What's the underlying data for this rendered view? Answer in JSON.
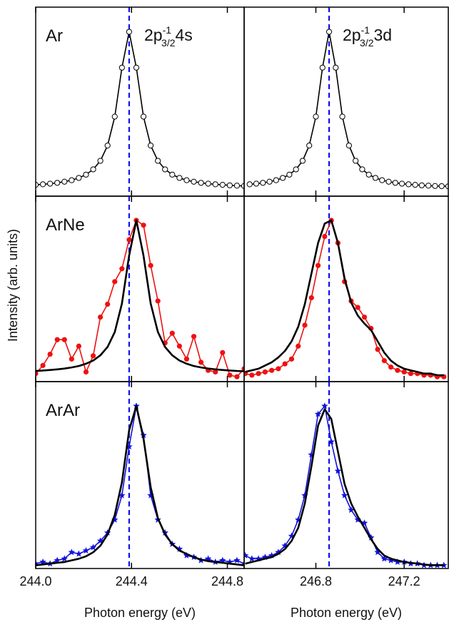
{
  "chart_data": [
    {
      "type": "line",
      "label": "Ar",
      "annotation": {
        "base": "2p",
        "sup": "-1",
        "sub": "3/2",
        "tail": "4s"
      },
      "xlim": [
        244.0,
        244.87
      ],
      "ylim": [
        0,
        1.15
      ],
      "vline": 244.39,
      "vline_color": "#0000ee",
      "series": [
        {
          "color": "#000000",
          "marker": "circle-open",
          "line": true,
          "x": [
            244.0,
            244.03,
            244.06,
            244.09,
            244.12,
            244.15,
            244.18,
            244.21,
            244.24,
            244.27,
            244.3,
            244.33,
            244.36,
            244.39,
            244.42,
            244.45,
            244.48,
            244.51,
            244.54,
            244.57,
            244.6,
            244.63,
            244.66,
            244.69,
            244.72,
            244.75,
            244.78,
            244.81,
            244.84,
            244.87
          ],
          "values": [
            0.069,
            0.072,
            0.076,
            0.081,
            0.088,
            0.097,
            0.111,
            0.131,
            0.163,
            0.215,
            0.308,
            0.484,
            0.782,
            1.0,
            0.782,
            0.484,
            0.308,
            0.215,
            0.163,
            0.131,
            0.111,
            0.097,
            0.088,
            0.081,
            0.076,
            0.072,
            0.069,
            0.066,
            0.064,
            0.062
          ]
        }
      ]
    },
    {
      "type": "line",
      "annotation": {
        "base": "2p",
        "sup": "-1",
        "sub": "3/2",
        "tail": "3d"
      },
      "xlim": [
        246.475,
        247.4
      ],
      "ylim": [
        0,
        1.15
      ],
      "vline": 246.86,
      "vline_color": "#0000ee",
      "series": [
        {
          "color": "#000000",
          "marker": "circle-open",
          "line": true,
          "x": [
            246.5,
            246.53,
            246.56,
            246.59,
            246.62,
            246.65,
            246.68,
            246.71,
            246.74,
            246.77,
            246.8,
            246.83,
            246.86,
            246.89,
            246.92,
            246.95,
            246.98,
            247.01,
            247.04,
            247.07,
            247.1,
            247.13,
            247.16,
            247.19,
            247.22,
            247.25,
            247.28,
            247.31,
            247.34,
            247.37,
            247.4
          ],
          "values": [
            0.072,
            0.076,
            0.081,
            0.088,
            0.097,
            0.111,
            0.131,
            0.163,
            0.215,
            0.308,
            0.484,
            0.782,
            1.0,
            0.782,
            0.484,
            0.308,
            0.215,
            0.163,
            0.131,
            0.111,
            0.097,
            0.088,
            0.081,
            0.076,
            0.072,
            0.069,
            0.066,
            0.064,
            0.062,
            0.061,
            0.06
          ]
        }
      ]
    },
    {
      "type": "line",
      "label": "ArNe",
      "ylabel": "Intensity (arb. units)",
      "xlim": [
        244.0,
        244.87
      ],
      "ylim": [
        0,
        1.15
      ],
      "vline": 244.39,
      "vline_color": "#0000ee",
      "series": [
        {
          "color": "#ee1111",
          "marker": "circle",
          "line": true,
          "x": [
            244.0,
            244.03,
            244.06,
            244.09,
            244.12,
            244.15,
            244.18,
            244.21,
            244.24,
            244.27,
            244.3,
            244.33,
            244.36,
            244.39,
            244.42,
            244.45,
            244.48,
            244.51,
            244.54,
            244.57,
            244.6,
            244.63,
            244.66,
            244.69,
            244.72,
            244.75,
            244.78,
            244.81,
            244.84,
            244.87
          ],
          "values": [
            0.05,
            0.1,
            0.17,
            0.26,
            0.26,
            0.14,
            0.22,
            0.06,
            0.16,
            0.4,
            0.48,
            0.62,
            0.7,
            0.88,
            1.0,
            0.97,
            0.72,
            0.5,
            0.24,
            0.3,
            0.22,
            0.14,
            0.28,
            0.12,
            0.07,
            0.06,
            0.18,
            0.04,
            0.03,
            0.08
          ]
        },
        {
          "color": "#000000",
          "marker": "none",
          "line": true,
          "x": [
            244.0,
            244.03,
            244.06,
            244.09,
            244.12,
            244.15,
            244.18,
            244.21,
            244.24,
            244.27,
            244.3,
            244.33,
            244.36,
            244.39,
            244.42,
            244.45,
            244.48,
            244.51,
            244.54,
            244.57,
            244.6,
            244.63,
            244.66,
            244.69,
            244.72,
            244.75,
            244.78,
            244.81,
            244.84,
            244.87
          ],
          "values": [
            0.066,
            0.069,
            0.072,
            0.076,
            0.081,
            0.088,
            0.097,
            0.111,
            0.131,
            0.163,
            0.215,
            0.308,
            0.484,
            0.782,
            1.0,
            0.782,
            0.484,
            0.308,
            0.215,
            0.163,
            0.131,
            0.111,
            0.097,
            0.088,
            0.081,
            0.076,
            0.072,
            0.069,
            0.066,
            0.064
          ]
        }
      ]
    },
    {
      "type": "line",
      "xlim": [
        246.475,
        247.4
      ],
      "ylim": [
        0,
        1.15
      ],
      "vline": 246.86,
      "vline_color": "#0000ee",
      "series": [
        {
          "color": "#ee1111",
          "marker": "circle",
          "line": true,
          "x": [
            246.48,
            246.51,
            246.54,
            246.57,
            246.6,
            246.63,
            246.66,
            246.69,
            246.72,
            246.75,
            246.78,
            246.81,
            246.84,
            246.87,
            246.9,
            246.93,
            246.96,
            246.99,
            247.02,
            247.05,
            247.08,
            247.11,
            247.14,
            247.17,
            247.2,
            247.23,
            247.26,
            247.29,
            247.32,
            247.35,
            247.38
          ],
          "values": [
            0.05,
            0.04,
            0.05,
            0.06,
            0.07,
            0.08,
            0.11,
            0.14,
            0.22,
            0.35,
            0.52,
            0.72,
            0.9,
            1.0,
            0.86,
            0.62,
            0.5,
            0.46,
            0.4,
            0.33,
            0.2,
            0.13,
            0.09,
            0.07,
            0.06,
            0.05,
            0.05,
            0.04,
            0.04,
            0.03,
            0.03
          ]
        },
        {
          "color": "#000000",
          "marker": "none",
          "line": true,
          "x": [
            246.48,
            246.51,
            246.54,
            246.57,
            246.6,
            246.63,
            246.66,
            246.69,
            246.72,
            246.75,
            246.78,
            246.81,
            246.84,
            246.87,
            246.9,
            246.93,
            246.96,
            246.99,
            247.02,
            247.05,
            247.08,
            247.11,
            247.14,
            247.17,
            247.2,
            247.23,
            247.26,
            247.29,
            247.32,
            247.35,
            247.38
          ],
          "values": [
            0.06,
            0.07,
            0.08,
            0.1,
            0.12,
            0.15,
            0.19,
            0.25,
            0.34,
            0.48,
            0.67,
            0.86,
            0.98,
            1.0,
            0.86,
            0.64,
            0.49,
            0.41,
            0.36,
            0.32,
            0.25,
            0.18,
            0.13,
            0.1,
            0.08,
            0.07,
            0.06,
            0.05,
            0.05,
            0.04,
            0.04
          ]
        }
      ]
    },
    {
      "type": "line",
      "label": "ArAr",
      "xlabel": "Photon energy (eV)",
      "xlim": [
        244.0,
        244.87
      ],
      "ylim": [
        0,
        1.15
      ],
      "vline": 244.39,
      "vline_color": "#0000ee",
      "xticks": [
        {
          "value": 244.0,
          "label": "244.0"
        },
        244.4,
        244.8
      ],
      "series": [
        {
          "color": "#1111dd",
          "marker": "star",
          "line": true,
          "x": [
            244.0,
            244.03,
            244.06,
            244.09,
            244.12,
            244.15,
            244.18,
            244.21,
            244.24,
            244.27,
            244.3,
            244.33,
            244.36,
            244.39,
            244.42,
            244.45,
            244.48,
            244.51,
            244.54,
            244.57,
            244.6,
            244.63,
            244.66,
            244.69,
            244.72,
            244.75,
            244.78,
            244.81,
            244.84,
            244.87
          ],
          "values": [
            0.03,
            0.04,
            0.03,
            0.05,
            0.06,
            0.1,
            0.09,
            0.11,
            0.13,
            0.17,
            0.22,
            0.3,
            0.45,
            0.75,
            1.0,
            0.82,
            0.45,
            0.3,
            0.22,
            0.15,
            0.12,
            0.08,
            0.07,
            0.05,
            0.06,
            0.04,
            0.05,
            0.04,
            0.05,
            0.03
          ]
        },
        {
          "color": "#000000",
          "marker": "none",
          "line": true,
          "x": [
            244.0,
            244.03,
            244.06,
            244.09,
            244.12,
            244.15,
            244.18,
            244.21,
            244.24,
            244.27,
            244.3,
            244.33,
            244.36,
            244.39,
            244.42,
            244.45,
            244.48,
            244.51,
            244.54,
            244.57,
            244.6,
            244.63,
            244.66,
            244.69,
            244.72,
            244.75,
            244.78,
            244.81,
            244.84,
            244.87
          ],
          "values": [
            0.02,
            0.025,
            0.03,
            0.035,
            0.04,
            0.05,
            0.06,
            0.075,
            0.1,
            0.14,
            0.21,
            0.33,
            0.53,
            0.85,
            1.0,
            0.8,
            0.5,
            0.31,
            0.21,
            0.15,
            0.11,
            0.09,
            0.07,
            0.055,
            0.045,
            0.04,
            0.035,
            0.03,
            0.025,
            0.02
          ]
        }
      ]
    },
    {
      "type": "line",
      "xlabel": "Photon energy (eV)",
      "xlim": [
        246.475,
        247.4
      ],
      "ylim": [
        0,
        1.15
      ],
      "vline": 246.86,
      "vline_color": "#0000ee",
      "xticks": [
        246.8,
        247.2
      ],
      "series": [
        {
          "color": "#1111dd",
          "marker": "star",
          "line": true,
          "x": [
            246.48,
            246.51,
            246.54,
            246.57,
            246.6,
            246.63,
            246.66,
            246.69,
            246.72,
            246.75,
            246.78,
            246.81,
            246.84,
            246.87,
            246.9,
            246.93,
            246.96,
            246.99,
            247.02,
            247.05,
            247.08,
            247.11,
            247.14,
            247.17,
            247.2,
            247.23,
            247.26,
            247.29,
            247.32,
            247.35,
            247.38
          ],
          "values": [
            0.08,
            0.06,
            0.06,
            0.07,
            0.08,
            0.1,
            0.14,
            0.2,
            0.3,
            0.45,
            0.7,
            0.95,
            1.0,
            0.78,
            0.6,
            0.45,
            0.36,
            0.3,
            0.28,
            0.19,
            0.1,
            0.06,
            0.05,
            0.04,
            0.04,
            0.03,
            0.03,
            0.02,
            0.02,
            0.02,
            0.02
          ]
        },
        {
          "color": "#000000",
          "marker": "none",
          "line": true,
          "x": [
            246.48,
            246.51,
            246.54,
            246.57,
            246.6,
            246.63,
            246.66,
            246.69,
            246.72,
            246.75,
            246.78,
            246.81,
            246.84,
            246.87,
            246.9,
            246.93,
            246.96,
            246.99,
            247.02,
            247.05,
            247.08,
            247.11,
            247.14,
            247.17,
            247.2,
            247.23,
            247.26,
            247.29,
            247.32,
            247.35,
            247.38
          ],
          "values": [
            0.03,
            0.04,
            0.05,
            0.06,
            0.07,
            0.09,
            0.12,
            0.17,
            0.25,
            0.4,
            0.63,
            0.88,
            0.98,
            0.92,
            0.72,
            0.52,
            0.4,
            0.32,
            0.25,
            0.18,
            0.12,
            0.08,
            0.06,
            0.05,
            0.04,
            0.035,
            0.03,
            0.025,
            0.02,
            0.02,
            0.02
          ]
        }
      ]
    }
  ]
}
